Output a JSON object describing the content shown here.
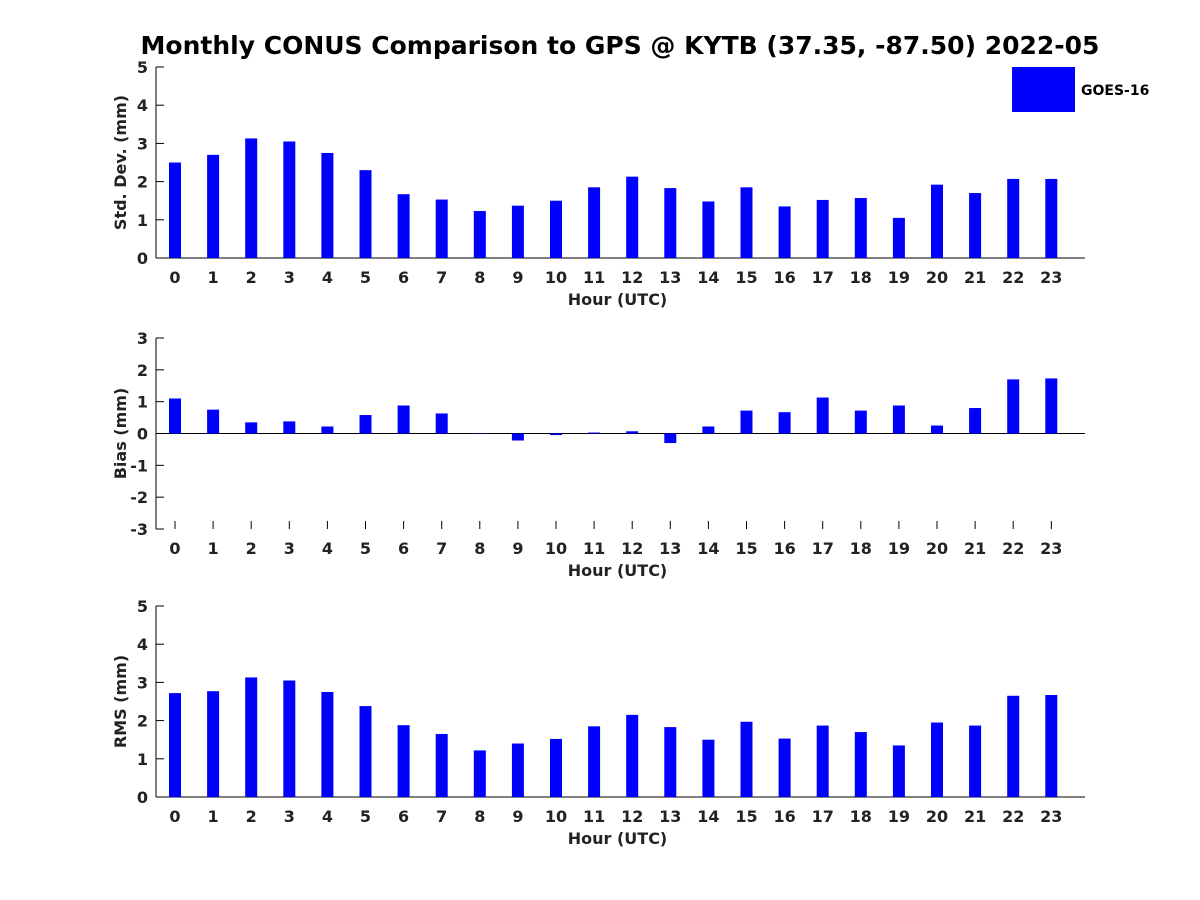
{
  "title": "Monthly CONUS Comparison to GPS @ KYTB (37.35, -87.50) 2022-05",
  "legend": {
    "label": "GOES-16",
    "color": "#0000ff"
  },
  "chart_data": [
    {
      "type": "bar",
      "ylabel": "Std. Dev. (mm)",
      "xlabel": "Hour (UTC)",
      "ylim": [
        0,
        5
      ],
      "yticks": [
        "0",
        "1",
        "2",
        "3",
        "4",
        "5"
      ],
      "categories": [
        "0",
        "1",
        "2",
        "3",
        "4",
        "5",
        "6",
        "7",
        "8",
        "9",
        "10",
        "11",
        "12",
        "13",
        "14",
        "15",
        "16",
        "17",
        "18",
        "19",
        "20",
        "21",
        "22",
        "23"
      ],
      "series": [
        {
          "name": "GOES-16",
          "values": [
            2.5,
            2.7,
            3.13,
            3.05,
            2.75,
            2.3,
            1.67,
            1.53,
            1.23,
            1.37,
            1.5,
            1.85,
            2.13,
            1.83,
            1.48,
            1.85,
            1.35,
            1.52,
            1.57,
            1.05,
            1.92,
            1.7,
            2.07,
            2.07
          ]
        }
      ]
    },
    {
      "type": "bar",
      "ylabel": "Bias (mm)",
      "xlabel": "Hour (UTC)",
      "ylim": [
        -3,
        3
      ],
      "yticks": [
        "-3",
        "-2",
        "-1",
        "0",
        "1",
        "2",
        "3"
      ],
      "categories": [
        "0",
        "1",
        "2",
        "3",
        "4",
        "5",
        "6",
        "7",
        "8",
        "9",
        "10",
        "11",
        "12",
        "13",
        "14",
        "15",
        "16",
        "17",
        "18",
        "19",
        "20",
        "21",
        "22",
        "23"
      ],
      "series": [
        {
          "name": "GOES-16",
          "values": [
            1.1,
            0.75,
            0.35,
            0.38,
            0.22,
            0.58,
            0.88,
            0.63,
            0.0,
            -0.22,
            -0.05,
            0.03,
            0.07,
            -0.3,
            0.22,
            0.72,
            0.67,
            1.13,
            0.72,
            0.88,
            0.25,
            0.8,
            1.7,
            1.73
          ]
        }
      ]
    },
    {
      "type": "bar",
      "ylabel": "RMS (mm)",
      "xlabel": "Hour (UTC)",
      "ylim": [
        0,
        5
      ],
      "yticks": [
        "0",
        "1",
        "2",
        "3",
        "4",
        "5"
      ],
      "categories": [
        "0",
        "1",
        "2",
        "3",
        "4",
        "5",
        "6",
        "7",
        "8",
        "9",
        "10",
        "11",
        "12",
        "13",
        "14",
        "15",
        "16",
        "17",
        "18",
        "19",
        "20",
        "21",
        "22",
        "23"
      ],
      "series": [
        {
          "name": "GOES-16",
          "values": [
            2.72,
            2.77,
            3.13,
            3.05,
            2.75,
            2.38,
            1.88,
            1.65,
            1.22,
            1.4,
            1.52,
            1.85,
            2.15,
            1.83,
            1.5,
            1.97,
            1.53,
            1.87,
            1.7,
            1.35,
            1.95,
            1.87,
            2.65,
            2.67
          ]
        }
      ]
    }
  ]
}
